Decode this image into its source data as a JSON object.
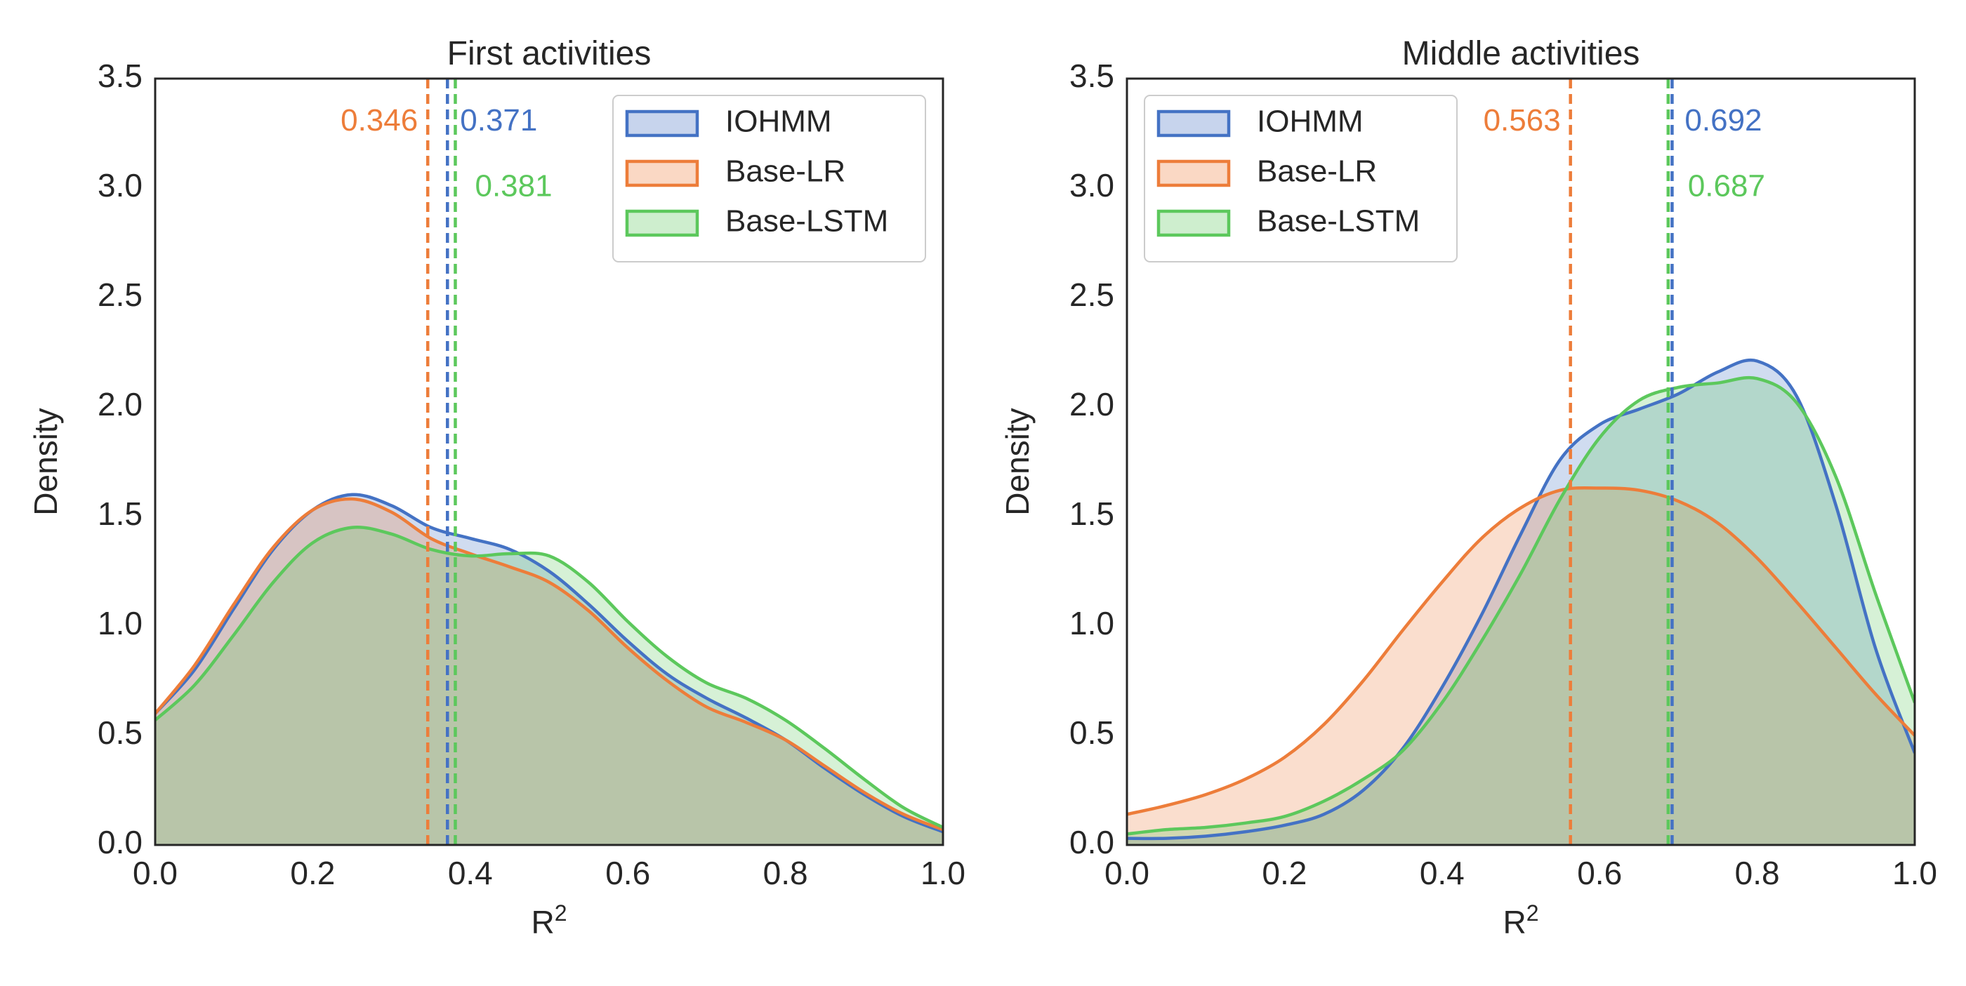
{
  "chart_data": [
    {
      "type": "area",
      "title": "First activities",
      "xlabel": "R",
      "xlabel_superscript": "2",
      "ylabel": "Density",
      "xlim": [
        0.0,
        1.0
      ],
      "ylim": [
        0.0,
        3.5
      ],
      "xticks": [
        "0.0",
        "0.2",
        "0.4",
        "0.6",
        "0.8",
        "1.0"
      ],
      "yticks": [
        "0.0",
        "0.5",
        "1.0",
        "1.5",
        "2.0",
        "2.5",
        "3.0",
        "3.5"
      ],
      "legend_position": "top-right",
      "x": [
        0.0,
        0.05,
        0.1,
        0.15,
        0.2,
        0.25,
        0.3,
        0.35,
        0.4,
        0.45,
        0.5,
        0.55,
        0.6,
        0.65,
        0.7,
        0.75,
        0.8,
        0.85,
        0.9,
        0.95,
        1.0
      ],
      "series": [
        {
          "name": "IOHMM",
          "color": "#4472c4",
          "values": [
            0.6,
            0.8,
            1.08,
            1.35,
            1.53,
            1.6,
            1.55,
            1.45,
            1.4,
            1.35,
            1.25,
            1.1,
            0.93,
            0.78,
            0.67,
            0.58,
            0.48,
            0.35,
            0.23,
            0.13,
            0.06
          ],
          "mean": 0.371,
          "mean_label": "0.371"
        },
        {
          "name": "Base-LR",
          "color": "#ed7d3a",
          "values": [
            0.6,
            0.82,
            1.1,
            1.36,
            1.53,
            1.58,
            1.52,
            1.4,
            1.33,
            1.27,
            1.2,
            1.07,
            0.9,
            0.75,
            0.63,
            0.56,
            0.48,
            0.36,
            0.24,
            0.14,
            0.07
          ],
          "mean": 0.346,
          "mean_label": "0.346"
        },
        {
          "name": "Base-LSTM",
          "color": "#5cc85c",
          "values": [
            0.57,
            0.73,
            0.96,
            1.2,
            1.38,
            1.45,
            1.42,
            1.35,
            1.32,
            1.33,
            1.32,
            1.2,
            1.02,
            0.86,
            0.74,
            0.67,
            0.57,
            0.44,
            0.3,
            0.17,
            0.08
          ],
          "mean": 0.381,
          "mean_label": "0.381"
        }
      ]
    },
    {
      "type": "area",
      "title": "Middle activities",
      "xlabel": "R",
      "xlabel_superscript": "2",
      "ylabel": "Density",
      "xlim": [
        0.0,
        1.0
      ],
      "ylim": [
        0.0,
        3.5
      ],
      "xticks": [
        "0.0",
        "0.2",
        "0.4",
        "0.6",
        "0.8",
        "1.0"
      ],
      "yticks": [
        "0.0",
        "0.5",
        "1.0",
        "1.5",
        "2.0",
        "2.5",
        "3.0",
        "3.5"
      ],
      "legend_position": "top-left",
      "x": [
        0.0,
        0.05,
        0.1,
        0.15,
        0.2,
        0.25,
        0.3,
        0.35,
        0.4,
        0.45,
        0.5,
        0.55,
        0.6,
        0.65,
        0.7,
        0.75,
        0.8,
        0.85,
        0.9,
        0.95,
        1.0
      ],
      "series": [
        {
          "name": "IOHMM",
          "color": "#4472c4",
          "values": [
            0.03,
            0.03,
            0.04,
            0.06,
            0.09,
            0.14,
            0.25,
            0.44,
            0.72,
            1.05,
            1.42,
            1.76,
            1.92,
            1.99,
            2.06,
            2.16,
            2.21,
            2.05,
            1.55,
            0.9,
            0.42
          ],
          "mean": 0.692,
          "mean_label": "0.692"
        },
        {
          "name": "Base-LR",
          "color": "#ed7d3a",
          "values": [
            0.14,
            0.18,
            0.23,
            0.3,
            0.4,
            0.55,
            0.75,
            0.98,
            1.2,
            1.4,
            1.54,
            1.62,
            1.63,
            1.62,
            1.57,
            1.47,
            1.31,
            1.11,
            0.9,
            0.69,
            0.5
          ],
          "mean": 0.563,
          "mean_label": "0.563"
        },
        {
          "name": "Base-LSTM",
          "color": "#5cc85c",
          "values": [
            0.05,
            0.07,
            0.08,
            0.1,
            0.13,
            0.2,
            0.3,
            0.43,
            0.65,
            0.93,
            1.24,
            1.58,
            1.86,
            2.03,
            2.09,
            2.11,
            2.13,
            2.02,
            1.68,
            1.15,
            0.65
          ],
          "mean": 0.687,
          "mean_label": "0.687"
        }
      ]
    }
  ]
}
